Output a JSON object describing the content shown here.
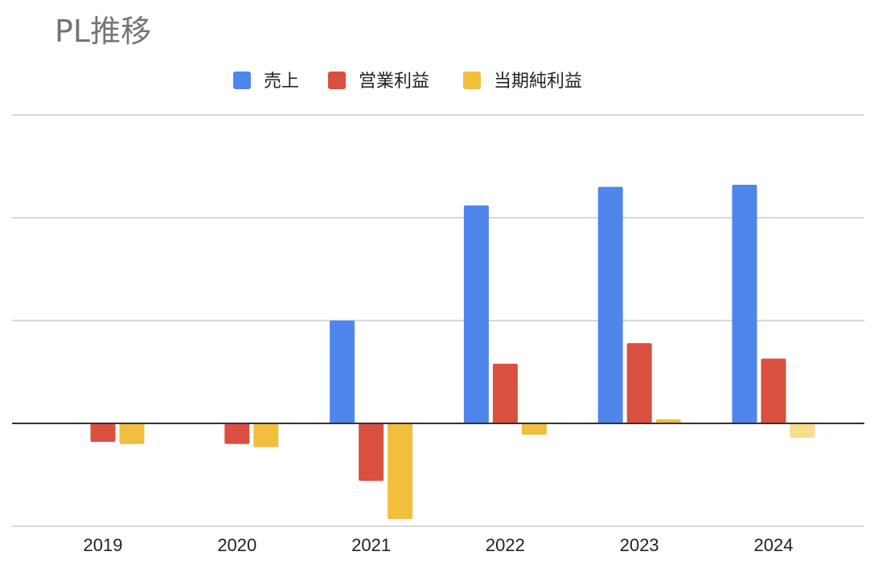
{
  "chart_data": {
    "type": "bar",
    "title": "PL推移",
    "categories": [
      "2019",
      "2020",
      "2021",
      "2022",
      "2023",
      "2024"
    ],
    "series": [
      {
        "name": "売上",
        "color": "#4f86ec",
        "values": [
          0,
          0,
          100,
          212,
          230,
          232
        ]
      },
      {
        "name": "営業利益",
        "color": "#d95040",
        "values": [
          -18,
          -20,
          -56,
          58,
          78,
          63
        ]
      },
      {
        "name": "当期純利益",
        "color": "#f1be3e",
        "values": [
          -20,
          -23,
          -93,
          -11,
          4,
          -14
        ],
        "highlight": {
          "index": 5,
          "color": "#f7dd8c"
        }
      }
    ],
    "ylim": [
      -100,
      300
    ],
    "gridlines": [
      -100,
      0,
      100,
      200,
      300
    ],
    "y_tick_labels_shown": false,
    "legend_position": "top-center",
    "grid": true
  }
}
